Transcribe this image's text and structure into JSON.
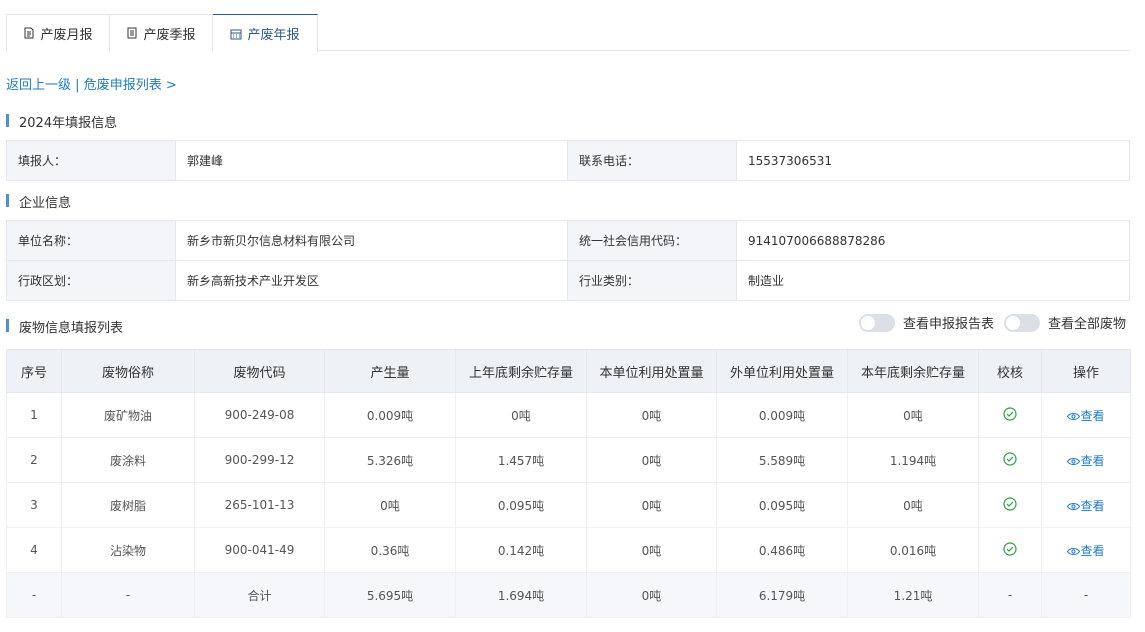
{
  "tabs": [
    {
      "label": "产废月报",
      "icon": "document-icon"
    },
    {
      "label": "产废季报",
      "icon": "list-document-icon"
    },
    {
      "label": "产废年报",
      "icon": "calendar-icon",
      "active": true
    }
  ],
  "breadcrumb": {
    "back": "返回上一级",
    "sep": "|",
    "list": "危废申报列表 >"
  },
  "report_section": {
    "title": "2024年填报信息",
    "filler_label": "填报人：",
    "filler": "郭建峰",
    "phone_label": "联系电话：",
    "phone": "15537306531"
  },
  "company_section": {
    "title": "企业信息",
    "name_label": "单位名称：",
    "name": "新乡市新贝尔信息材料有限公司",
    "credit_label": "统一社会信用代码：",
    "credit": "914107006688878286",
    "region_label": "行政区划：",
    "region": "新乡高新技术产业开发区",
    "industry_label": "行业类别：",
    "industry": "制造业"
  },
  "waste_section": {
    "title": "废物信息填报列表",
    "toggle1": "查看申报报告表",
    "toggle2": "查看全部废物",
    "toggle1_on": false,
    "toggle2_on": false
  },
  "columns": [
    "序号",
    "废物俗称",
    "废物代码",
    "产生量",
    "上年底剩余贮存量",
    "本单位利用处置量",
    "外单位利用处置量",
    "本年底剩余贮存量",
    "校核",
    "操作"
  ],
  "rows": [
    [
      "1",
      "废矿物油",
      "900-249-08",
      "0.009吨",
      "0吨",
      "0吨",
      "0.009吨",
      "0吨"
    ],
    [
      "2",
      "废涂料",
      "900-299-12",
      "5.326吨",
      "1.457吨",
      "0吨",
      "5.589吨",
      "1.194吨"
    ],
    [
      "3",
      "废树脂",
      "265-101-13",
      "0吨",
      "0.095吨",
      "0吨",
      "0.095吨",
      "0吨"
    ],
    [
      "4",
      "沾染物",
      "900-041-49",
      "0.36吨",
      "0.142吨",
      "0吨",
      "0.486吨",
      "0.016吨"
    ]
  ],
  "view_label": "查看",
  "total": [
    "-",
    "-",
    "合计",
    "5.695吨",
    "1.694吨",
    "0吨",
    "6.179吨",
    "1.21吨",
    "-",
    "-"
  ],
  "colors": {
    "accent": "#1f7bc1",
    "check": "#2ea043"
  }
}
